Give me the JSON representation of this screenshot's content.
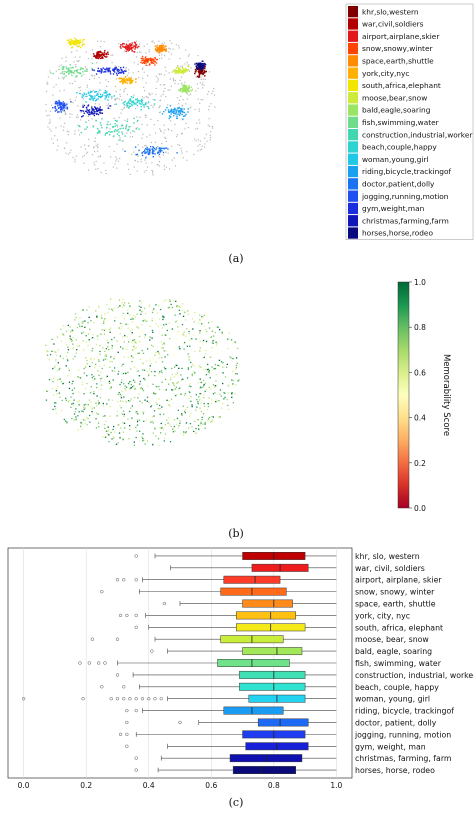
{
  "panels": {
    "a": {
      "caption": "(a)",
      "chart_data": {
        "type": "scatter",
        "description_legend_placement": "right",
        "legend": [
          {
            "label": "khr,slo,western",
            "color": "#800000"
          },
          {
            "label": "war,civil,soldiers",
            "color": "#b30000"
          },
          {
            "label": "airport,airplane,skier",
            "color": "#e31a1c"
          },
          {
            "label": "snow,snowy,winter",
            "color": "#ff4500"
          },
          {
            "label": "space,earth,shuttle",
            "color": "#ff8c00"
          },
          {
            "label": "york,city,nyc",
            "color": "#ffb000"
          },
          {
            "label": "south,africa,elephant",
            "color": "#f2e600"
          },
          {
            "label": "moose,bear,snow",
            "color": "#cdeb3a"
          },
          {
            "label": "bald,eagle,soaring",
            "color": "#9be564"
          },
          {
            "label": "fish,swimming,water",
            "color": "#6fdc8c"
          },
          {
            "label": "construction,industrial,worker",
            "color": "#3fd6b0"
          },
          {
            "label": "beach,couple,happy",
            "color": "#2dd4cf"
          },
          {
            "label": "woman,young,girl",
            "color": "#1ec8e6"
          },
          {
            "label": "riding,bicycle,trackingof",
            "color": "#1aa0f0"
          },
          {
            "label": "doctor,patient,dolly",
            "color": "#1a74f2"
          },
          {
            "label": "jogging,running,motion",
            "color": "#1f4ff0"
          },
          {
            "label": "gym,weight,man",
            "color": "#1a2ee0"
          },
          {
            "label": "christmas,farming,farm",
            "color": "#1016b8"
          },
          {
            "label": "horses,horse,rodeo",
            "color": "#0a0a80"
          }
        ]
      }
    },
    "b": {
      "caption": "(b)",
      "chart_data": {
        "type": "scatter",
        "colorbar_label": "Memorability Score",
        "colorbar_ticks": [
          "1.0",
          "0.8",
          "0.6",
          "0.4",
          "0.2",
          "0.0"
        ],
        "colorbar_range": [
          0,
          1
        ]
      }
    },
    "c": {
      "caption": "(c)",
      "chart_data": {
        "type": "box",
        "orientation": "horizontal",
        "xlim": [
          -0.05,
          1.05
        ],
        "xticks": [
          "0.0",
          "0.2",
          "0.4",
          "0.6",
          "0.8",
          "1.0"
        ],
        "grid": true,
        "categories": [
          {
            "label": "khr, slo, western",
            "q1": 0.7,
            "median": 0.8,
            "q3": 0.9,
            "wmin": 0.42,
            "wmax": 1.0,
            "outliers": [
              0.36
            ],
            "color": "#c00000"
          },
          {
            "label": "war, civil, soldiers",
            "q1": 0.73,
            "median": 0.82,
            "q3": 0.91,
            "wmin": 0.47,
            "wmax": 1.0,
            "outliers": [],
            "color": "#ee1c1c"
          },
          {
            "label": "airport, airplane, skier",
            "q1": 0.64,
            "median": 0.74,
            "q3": 0.82,
            "wmin": 0.38,
            "wmax": 1.0,
            "outliers": [
              0.3,
              0.32,
              0.36
            ],
            "color": "#ff3b2a"
          },
          {
            "label": "snow, snowy, winter",
            "q1": 0.63,
            "median": 0.73,
            "q3": 0.84,
            "wmin": 0.37,
            "wmax": 1.0,
            "outliers": [
              0.25
            ],
            "color": "#ff6a1a"
          },
          {
            "label": "space, earth, shuttle",
            "q1": 0.7,
            "median": 0.8,
            "q3": 0.86,
            "wmin": 0.5,
            "wmax": 1.0,
            "outliers": [
              0.45
            ],
            "color": "#ff8c1a"
          },
          {
            "label": "york, city, nyc",
            "q1": 0.68,
            "median": 0.79,
            "q3": 0.87,
            "wmin": 0.39,
            "wmax": 1.0,
            "outliers": [
              0.31,
              0.33,
              0.36
            ],
            "color": "#ffc014"
          },
          {
            "label": "south, africa, elephant",
            "q1": 0.68,
            "median": 0.79,
            "q3": 0.9,
            "wmin": 0.4,
            "wmax": 1.0,
            "outliers": [
              0.36
            ],
            "color": "#f4ea1a"
          },
          {
            "label": "moose, bear, snow",
            "q1": 0.63,
            "median": 0.73,
            "q3": 0.83,
            "wmin": 0.42,
            "wmax": 1.0,
            "outliers": [
              0.22,
              0.3
            ],
            "color": "#c8ee3a"
          },
          {
            "label": "bald, eagle, soaring",
            "q1": 0.7,
            "median": 0.81,
            "q3": 0.89,
            "wmin": 0.46,
            "wmax": 1.0,
            "outliers": [
              0.41
            ],
            "color": "#a2e85a"
          },
          {
            "label": "fish, swimming, water",
            "q1": 0.62,
            "median": 0.73,
            "q3": 0.85,
            "wmin": 0.3,
            "wmax": 1.0,
            "outliers": [
              0.18,
              0.21,
              0.24,
              0.26
            ],
            "color": "#6fe28a"
          },
          {
            "label": "construction, industrial, worker",
            "q1": 0.69,
            "median": 0.8,
            "q3": 0.9,
            "wmin": 0.35,
            "wmax": 1.0,
            "outliers": [
              0.3
            ],
            "color": "#3fe0b4"
          },
          {
            "label": "beach, couple, happy",
            "q1": 0.69,
            "median": 0.8,
            "q3": 0.9,
            "wmin": 0.37,
            "wmax": 1.0,
            "outliers": [
              0.25,
              0.32
            ],
            "color": "#2ee4d0"
          },
          {
            "label": "woman, young, girl",
            "q1": 0.72,
            "median": 0.81,
            "q3": 0.9,
            "wmin": 0.46,
            "wmax": 1.0,
            "outliers": [
              0.0,
              0.19,
              0.28,
              0.3,
              0.32,
              0.34,
              0.36,
              0.38,
              0.4,
              0.42,
              0.44
            ],
            "color": "#22d2f0"
          },
          {
            "label": "riding, bicycle, trackingof",
            "q1": 0.64,
            "median": 0.73,
            "q3": 0.83,
            "wmin": 0.38,
            "wmax": 1.0,
            "outliers": [
              0.33,
              0.36
            ],
            "color": "#1a9cf2"
          },
          {
            "label": "doctor, patient, dolly",
            "q1": 0.75,
            "median": 0.82,
            "q3": 0.91,
            "wmin": 0.56,
            "wmax": 1.0,
            "outliers": [
              0.33,
              0.5
            ],
            "color": "#1f6af5"
          },
          {
            "label": "jogging, running, motion",
            "q1": 0.7,
            "median": 0.8,
            "q3": 0.9,
            "wmin": 0.36,
            "wmax": 1.0,
            "outliers": [
              0.31,
              0.33
            ],
            "color": "#1f3ef2"
          },
          {
            "label": "gym, weight, man",
            "q1": 0.71,
            "median": 0.81,
            "q3": 0.91,
            "wmin": 0.46,
            "wmax": 1.0,
            "outliers": [
              0.33
            ],
            "color": "#1820d8"
          },
          {
            "label": "christmas, farming, farm",
            "q1": 0.66,
            "median": 0.78,
            "q3": 0.89,
            "wmin": 0.44,
            "wmax": 1.0,
            "outliers": [
              0.36
            ],
            "color": "#0f10b0"
          },
          {
            "label": "horses, horse, rodeo",
            "q1": 0.67,
            "median": 0.76,
            "q3": 0.87,
            "wmin": 0.43,
            "wmax": 1.0,
            "outliers": [
              0.36
            ],
            "color": "#0a0a7a"
          }
        ]
      }
    }
  }
}
